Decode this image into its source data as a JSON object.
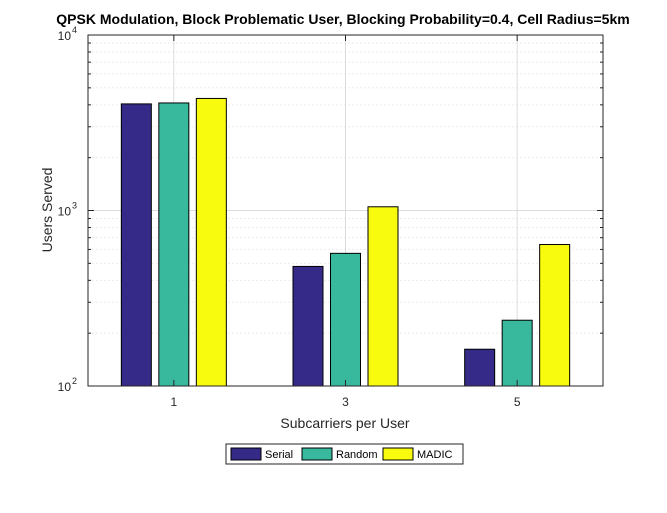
{
  "chart_data": {
    "type": "bar",
    "title": "QPSK Modulation, Block Problematic User, Blocking Probability=0.4, Cell Radius=5km",
    "xlabel": "Subcarriers per User",
    "ylabel": "Users Served",
    "yscale": "log",
    "ylim": [
      100,
      10000
    ],
    "ytick_labels": [
      {
        "base": "10",
        "exp": "2"
      },
      {
        "base": "10",
        "exp": "3"
      },
      {
        "base": "10",
        "exp": "4"
      }
    ],
    "categories": [
      "1",
      "3",
      "5"
    ],
    "series": [
      {
        "name": "Serial",
        "color": "#352a87",
        "values": [
          4050,
          480,
          162
        ]
      },
      {
        "name": "Random",
        "color": "#38b99e",
        "values": [
          4100,
          570,
          237
        ]
      },
      {
        "name": "MADIC",
        "color": "#f9fb0e",
        "values": [
          4350,
          1050,
          640
        ]
      }
    ],
    "grid": true,
    "legend_position": "bottom"
  }
}
